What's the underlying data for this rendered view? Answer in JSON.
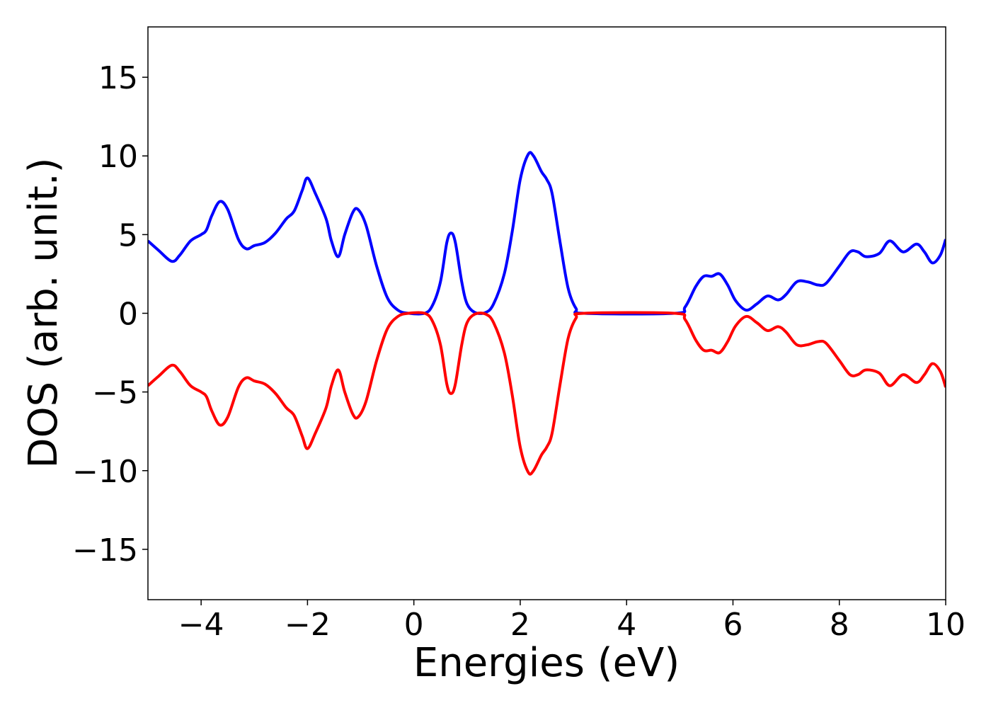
{
  "chart_data": {
    "type": "line",
    "xlabel": "Energies (eV)",
    "ylabel": "DOS (arb. unit.)",
    "x": [
      -5,
      -4.8,
      -4.55,
      -4.4,
      -4.2,
      -4.0,
      -3.9,
      -3.8,
      -3.65,
      -3.5,
      -3.3,
      -3.15,
      -3.0,
      -2.8,
      -2.6,
      -2.4,
      -2.25,
      -2.1,
      -2.0,
      -1.85,
      -1.65,
      -1.55,
      -1.42,
      -1.3,
      -1.15,
      -1.05,
      -0.9,
      -0.7,
      -0.5,
      -0.3,
      -0.1,
      0.2,
      0.35,
      0.5,
      0.62,
      0.7,
      0.78,
      0.9,
      1.0,
      1.15,
      1.35,
      1.5,
      1.7,
      1.85,
      2.0,
      2.15,
      2.25,
      2.4,
      2.5,
      2.6,
      2.75,
      2.9,
      3.05,
      3.2,
      4.9,
      5.1,
      5.3,
      5.45,
      5.6,
      5.75,
      5.9,
      6.05,
      6.25,
      6.45,
      6.65,
      6.85,
      7.0,
      7.2,
      7.4,
      7.6,
      7.75,
      8.0,
      8.2,
      8.35,
      8.5,
      8.75,
      8.95,
      9.2,
      9.45,
      9.6,
      9.75,
      9.9,
      10
    ],
    "series": [
      {
        "color": "#0000ff",
        "values": [
          4.6,
          4.0,
          3.3,
          3.7,
          4.6,
          5.0,
          5.3,
          6.2,
          7.1,
          6.6,
          4.7,
          4.1,
          4.3,
          4.5,
          5.1,
          6.0,
          6.5,
          7.8,
          8.6,
          7.6,
          6.0,
          4.6,
          3.6,
          5.0,
          6.4,
          6.6,
          5.6,
          3.0,
          1.0,
          0.2,
          0.0,
          0.0,
          0.5,
          2.0,
          4.5,
          5.1,
          4.5,
          2.0,
          0.6,
          0.05,
          0.05,
          0.6,
          2.5,
          5.2,
          8.5,
          10.1,
          10.0,
          9.0,
          8.5,
          7.6,
          4.5,
          1.6,
          0.3,
          0.0,
          0.0,
          0.4,
          1.7,
          2.35,
          2.35,
          2.5,
          1.8,
          0.8,
          0.2,
          0.6,
          1.1,
          0.85,
          1.2,
          2.0,
          2.0,
          1.8,
          1.9,
          3.0,
          3.9,
          3.9,
          3.6,
          3.8,
          4.6,
          3.9,
          4.4,
          3.9,
          3.2,
          3.7,
          4.7
        ]
      },
      {
        "color": "#ff0000",
        "values": [
          -4.6,
          -4.0,
          -3.3,
          -3.7,
          -4.6,
          -5.0,
          -5.3,
          -6.2,
          -7.1,
          -6.6,
          -4.7,
          -4.1,
          -4.3,
          -4.5,
          -5.1,
          -6.0,
          -6.5,
          -7.8,
          -8.6,
          -7.6,
          -6.0,
          -4.6,
          -3.6,
          -5.0,
          -6.4,
          -6.6,
          -5.6,
          -3.0,
          -1.0,
          -0.2,
          0.0,
          0.0,
          -0.5,
          -2.0,
          -4.5,
          -5.1,
          -4.5,
          -2.0,
          -0.6,
          -0.05,
          -0.05,
          -0.6,
          -2.5,
          -5.2,
          -8.5,
          -10.1,
          -10.0,
          -9.0,
          -8.5,
          -7.6,
          -4.5,
          -1.6,
          -0.3,
          0.0,
          0.0,
          -0.4,
          -1.7,
          -2.35,
          -2.35,
          -2.5,
          -1.8,
          -0.8,
          -0.2,
          -0.6,
          -1.1,
          -0.85,
          -1.2,
          -2.0,
          -2.0,
          -1.8,
          -1.9,
          -3.0,
          -3.9,
          -3.9,
          -3.6,
          -3.8,
          -4.6,
          -3.9,
          -4.4,
          -3.9,
          -3.2,
          -3.7,
          -4.7
        ]
      }
    ],
    "xlim": [
      -5,
      10
    ],
    "xticks": [
      {
        "value": -4,
        "label": "−4"
      },
      {
        "value": -2,
        "label": "−2"
      },
      0,
      2,
      4,
      6,
      8,
      10
    ],
    "ylim": [
      -18.2,
      18.2
    ],
    "yticks": [
      {
        "value": -15,
        "label": "−15"
      },
      {
        "value": -10,
        "label": "−10"
      },
      {
        "value": -5,
        "label": "−5"
      },
      0,
      5,
      10,
      15
    ]
  }
}
